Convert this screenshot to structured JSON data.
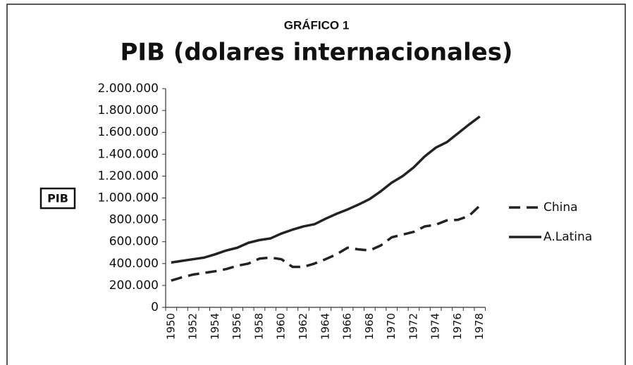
{
  "chart_data": {
    "type": "line",
    "supertitle": "GRÁFICO 1",
    "title": "PIB (dolares internacionales)",
    "y_label": "PIB",
    "categories": [
      "1950",
      null,
      "1952",
      null,
      "1954",
      null,
      "1956",
      null,
      "1958",
      null,
      "1960",
      null,
      "1962",
      null,
      "1964",
      null,
      "1966",
      null,
      "1968",
      null,
      "1970",
      null,
      "1972",
      null,
      "1974",
      null,
      "1976",
      null,
      "1978"
    ],
    "series": [
      {
        "name": "China",
        "color": "#222222",
        "dash": "dashed",
        "values": [
          245000,
          275000,
          300000,
          315000,
          330000,
          350000,
          380000,
          400000,
          445000,
          455000,
          440000,
          370000,
          370000,
          400000,
          440000,
          485000,
          545000,
          530000,
          520000,
          565000,
          640000,
          665000,
          690000,
          740000,
          755000,
          795000,
          800000,
          835000,
          930000
        ]
      },
      {
        "name": "A.Latina",
        "color": "#222222",
        "dash": "solid",
        "values": [
          410000,
          425000,
          440000,
          455000,
          485000,
          520000,
          545000,
          590000,
          615000,
          630000,
          675000,
          710000,
          740000,
          760000,
          810000,
          855000,
          895000,
          940000,
          990000,
          1060000,
          1140000,
          1200000,
          1280000,
          1380000,
          1460000,
          1510000,
          1590000,
          1670000,
          1745000
        ]
      }
    ],
    "ylim": [
      0,
      2000000
    ],
    "yticks": [
      0,
      {
        "value": 200000,
        "label": "200.000"
      },
      {
        "value": 400000,
        "label": "400.000"
      },
      {
        "value": 600000,
        "label": "600.000"
      },
      {
        "value": 800000,
        "label": "800.000"
      },
      {
        "value": 1000000,
        "label": "1.000.000"
      },
      {
        "value": 1200000,
        "label": "1.200.000"
      },
      {
        "value": 1400000,
        "label": "1.400.000"
      },
      {
        "value": 1600000,
        "label": "1.600.000"
      },
      {
        "value": 1800000,
        "label": "1.800.000"
      },
      {
        "value": 2000000,
        "label": "2.000.000"
      }
    ],
    "grid": false,
    "legend": "right"
  }
}
